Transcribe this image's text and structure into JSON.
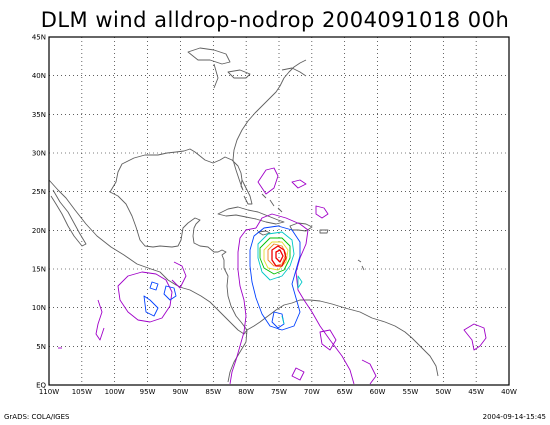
{
  "title": "DLM wind alldrop-nodrop 2004091018 00h",
  "footer": {
    "left": "GrADS: COLA/IGES",
    "right": "2004-09-14-15:45"
  },
  "map": {
    "lon_range": [
      -110,
      -40
    ],
    "lat_range": [
      0,
      45
    ],
    "grid": "dotted",
    "lat_labels": [
      "EQ",
      "5N",
      "10N",
      "15N",
      "20N",
      "25N",
      "30N",
      "35N",
      "40N",
      "45N"
    ],
    "lon_labels": [
      "110W",
      "105W",
      "100W",
      "95W",
      "90W",
      "85W",
      "80W",
      "75W",
      "70W",
      "65W",
      "60W",
      "55W",
      "50W",
      "45W",
      "40W"
    ]
  },
  "colors": {
    "coastline": "#606060",
    "contour_purple": "#a000c8",
    "contour_blue": "#0040ff",
    "contour_cyan": "#00c8c8",
    "contour_green": "#00c000",
    "contour_yellow": "#e6dc32",
    "contour_orange": "#f08228",
    "contour_red": "#f00000"
  }
}
